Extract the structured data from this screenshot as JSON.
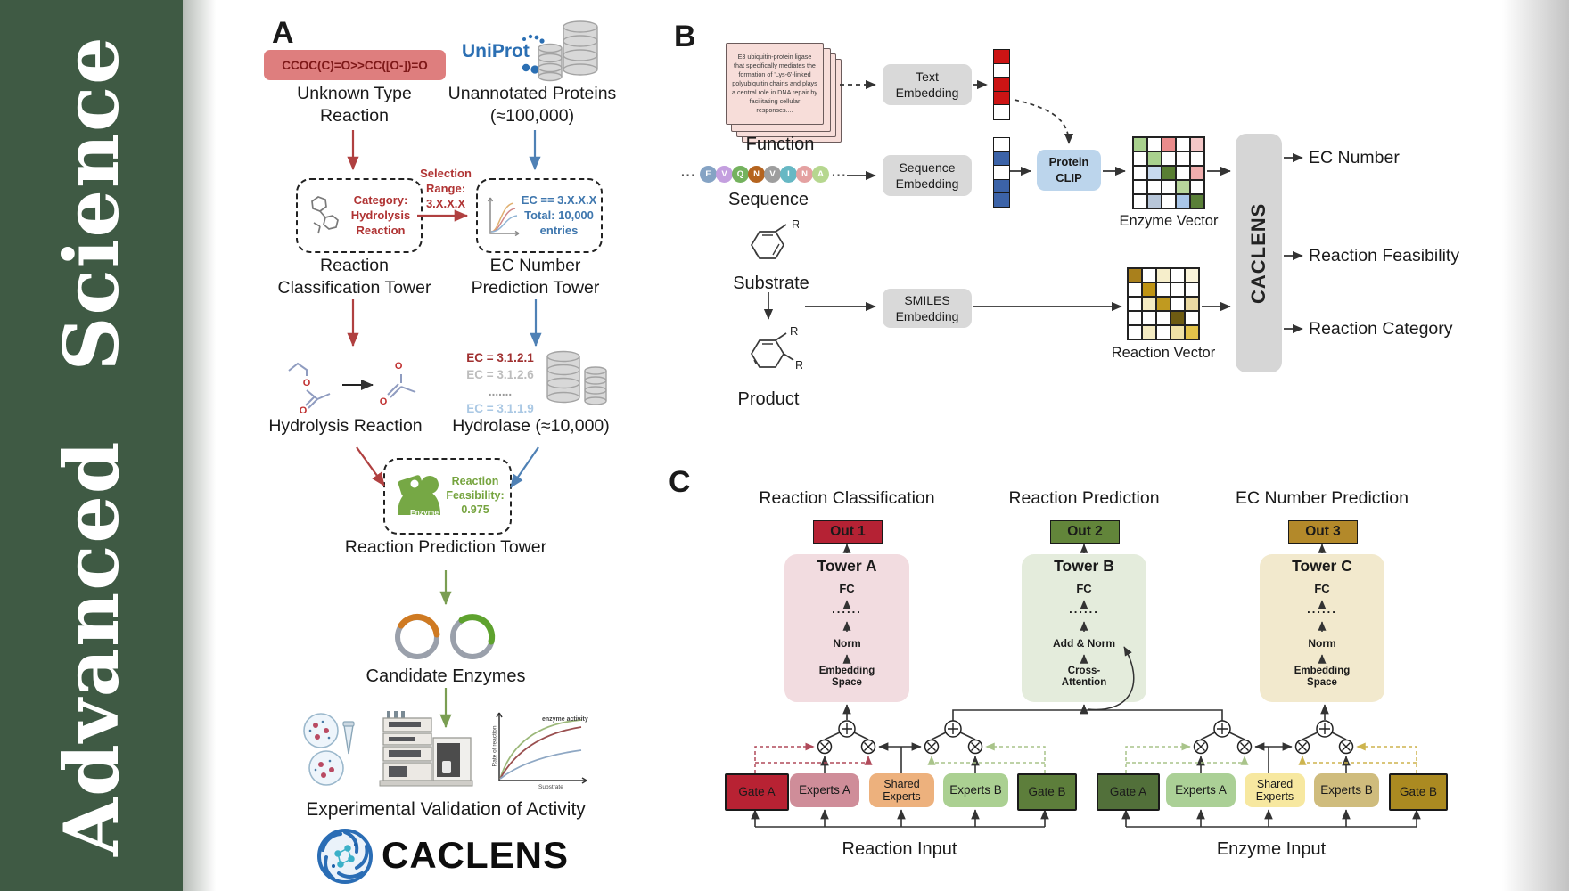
{
  "journal": {
    "name": "Advanced Science",
    "bg": "#3f5a44"
  },
  "panelA": {
    "label": "A",
    "smiles": "CCOC(C)=O>>CC([O-])=O",
    "unknown_reaction": "Unknown Type Reaction",
    "uniprot": "UniProt",
    "unannotated": "Unannotated Proteins (≈100,000)",
    "selection": [
      "Selection",
      "Range:",
      "3.X.X.X"
    ],
    "category_box": [
      "Category:",
      "Hydrolysis",
      "Reaction"
    ],
    "ec_box": [
      "EC == 3.X.X.X",
      "Total: 10,000",
      "entries"
    ],
    "tower1": "Reaction Classification Tower",
    "tower2": "EC Number Prediction Tower",
    "hydrolysis": "Hydrolysis Reaction",
    "ec_list": [
      {
        "text": "EC = 3.1.2.1",
        "color": "#a03030"
      },
      {
        "text": "EC = 3.1.2.6",
        "color": "#bdbdbd"
      },
      {
        "text": ".......",
        "color": "#9a9a9a"
      },
      {
        "text": "EC = 3.1.1.9",
        "color": "#aac8e4"
      }
    ],
    "hydrolase": "Hydrolase (≈10,000)",
    "enzyme_label": "Enzyme",
    "feasibility": [
      "Reaction",
      "Feasibility:",
      "0.975"
    ],
    "tower3": "Reaction Prediction Tower",
    "candidates": "Candidate Enzymes",
    "validation": "Experimental Validation of Activity",
    "logo_text": "CACLENS",
    "atom_o": "O",
    "atom_o_minus": "O⁻",
    "miniplot": {
      "title": "enzyme activity",
      "ylabel": "Rate of reaction",
      "xlabel": "Substrate"
    }
  },
  "panelB": {
    "label": "B",
    "card_text": "E3 ubiquitin-protein ligase that specifically mediates the formation of 'Lys-6'-linked polyubiquitin chains and plays a central role in DNA repair by facilitating cellular responses....",
    "function": "Function",
    "sequence": "Sequence",
    "substrate": "Substrate",
    "product": "Product",
    "r_label": "R",
    "ellipsis": "···",
    "residues": [
      {
        "ch": "E",
        "color": "#85a3c4"
      },
      {
        "ch": "V",
        "color": "#c49fdf"
      },
      {
        "ch": "Q",
        "color": "#74b25e"
      },
      {
        "ch": "N",
        "color": "#b5641f"
      },
      {
        "ch": "V",
        "color": "#9e9e9e"
      },
      {
        "ch": "I",
        "color": "#67b8c4"
      },
      {
        "ch": "N",
        "color": "#e4a1a1"
      },
      {
        "ch": "A",
        "color": "#b6d78f"
      }
    ],
    "text_embedding": [
      "Text",
      "Embedding"
    ],
    "sequence_embedding": [
      "Sequence",
      "Embedding"
    ],
    "smiles_embedding": [
      "SMILES",
      "Embedding"
    ],
    "protein_clip": [
      "Protein",
      "CLIP"
    ],
    "text_vector": [
      "#cc1414",
      "#ffffff",
      "#cc1414",
      "#cc1414",
      "#ffffff"
    ],
    "seq_vector": [
      "#ffffff",
      "#3c63a8",
      "#ffffff",
      "#3c63a8",
      "#3c63a8"
    ],
    "enzyme_vector_label": "Enzyme Vector",
    "reaction_vector_label": "Reaction Vector",
    "enzyme_matrix": [
      "#a9d18e",
      "#ffffff",
      "#e98b8b",
      "#ffffff",
      "#f4c7c7",
      "#ffffff",
      "#a9d18e",
      "#ffffff",
      "#ffffff",
      "#ffffff",
      "#ffffff",
      "#c7d9ee",
      "#597f33",
      "#ffffff",
      "#f0aeae",
      "#ffffff",
      "#ffffff",
      "#ffffff",
      "#b8d69c",
      "#ffffff",
      "#ffffff",
      "#b7c6d9",
      "#ffffff",
      "#a9c6e8",
      "#5a8038"
    ],
    "reaction_matrix": [
      "#a9801c",
      "#ffffff",
      "#f6eecb",
      "#ffffff",
      "#faf4da",
      "#ffffff",
      "#bf9414",
      "#ffffff",
      "#ffffff",
      "#ffffff",
      "#ffffff",
      "#f4ebc2",
      "#c09a20",
      "#ffffff",
      "#ead9a2",
      "#ffffff",
      "#ffffff",
      "#ffffff",
      "#6e5c12",
      "#ffffff",
      "#ffffff",
      "#f4ebc2",
      "#ffffff",
      "#f0e2a6",
      "#e3c34a"
    ],
    "caclens": "CACLENS",
    "outputs": [
      "EC Number",
      "Reaction Feasibility",
      "Reaction Category"
    ]
  },
  "panelC": {
    "label": "C",
    "headers": [
      "Reaction Classification",
      "Reaction Prediction",
      "EC Number Prediction"
    ],
    "towers": [
      {
        "title": "Tower A",
        "out": "Out 1",
        "out_bg": "#b52234",
        "panel_bg": "#f2dce0",
        "fc": "FC",
        "dots": "......",
        "mid": "Norm",
        "bot1": "Embedding",
        "bot2": "Space"
      },
      {
        "title": "Tower B",
        "out": "Out 2",
        "out_bg": "#62853a",
        "panel_bg": "#e4ecdc",
        "fc": "FC",
        "dots": "......",
        "mid": "Add & Norm",
        "bot1": "Cross-",
        "bot2": "Attention"
      },
      {
        "title": "Tower C",
        "out": "Out 3",
        "out_bg": "#b3892a",
        "panel_bg": "#f2e9cd",
        "fc": "FC",
        "dots": "......",
        "mid": "Norm",
        "bot1": "Embedding",
        "bot2": "Space"
      }
    ],
    "groups": [
      {
        "input": "Reaction Input",
        "boxes": [
          {
            "label": "Gate A",
            "bg": "#b82233"
          },
          {
            "label": "Experts A",
            "bg": "#cf8d99"
          },
          {
            "label": "Shared Experts",
            "bg": "#edb17d"
          },
          {
            "label": "Experts B",
            "bg": "#abd092"
          },
          {
            "label": "Gate B",
            "bg": "#5d7e3b"
          }
        ]
      },
      {
        "input": "Enzyme Input",
        "boxes": [
          {
            "label": "Gate A",
            "bg": "#52703a"
          },
          {
            "label": "Experts A",
            "bg": "#abd096"
          },
          {
            "label": "Shared Experts",
            "bg": "#f7e8a0"
          },
          {
            "label": "Experts B",
            "bg": "#cfbc7d"
          },
          {
            "label": "Gate B",
            "bg": "#ab8a21"
          }
        ]
      }
    ]
  }
}
